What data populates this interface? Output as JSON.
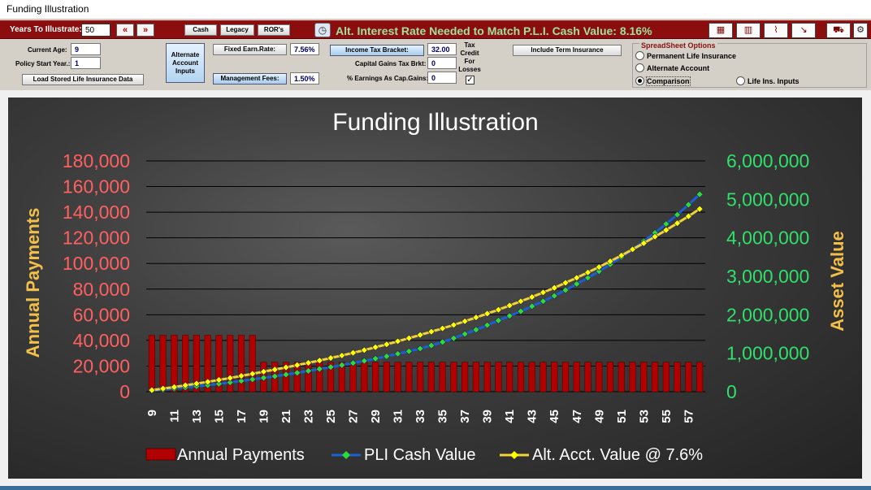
{
  "window": {
    "title": "Funding Illustration"
  },
  "toolbar": {
    "years_label": "Years To Illustrate:",
    "years_value": "50",
    "prev_label": "«",
    "next_label": "»",
    "cash_label": "Cash",
    "legacy_label": "Legacy",
    "rors_label": "ROR's",
    "alt_rate_text": "Alt. Interest Rate Needed to Match P.L.I. Cash Value: 8.16%",
    "icons": [
      "gauge-icon",
      "table-icon",
      "bar-chart-icon",
      "line-chart-icon",
      "trend-chart-icon",
      "car-icon",
      "settings-icon"
    ]
  },
  "inputs": {
    "current_age_label": "Current Age:",
    "current_age_value": "9",
    "policy_start_label": "Policy Start Year.:",
    "policy_start_value": "1",
    "load_button": "Load Stored Life Insurance Data",
    "alt_account_button": "Alternate Account Inputs",
    "fixed_earn_label": "Fixed Earn.Rate:",
    "fixed_earn_value": "7.56%",
    "mgmt_fees_label": "Management Fees:",
    "mgmt_fees_value": "1.50%",
    "income_tax_label": "Income Tax Bracket:",
    "income_tax_value": "32.00",
    "cap_gains_label": "Capital Gains Tax Brkt:",
    "cap_gains_value": "0",
    "pct_earnings_label": "% Earnings As Cap.Gains:",
    "pct_earnings_value": "0",
    "tax_credit_label": "Tax Credit For Losses",
    "tax_credit_checked": true,
    "term_insurance_button": "Include Term Insurance"
  },
  "spreadsheet_options": {
    "title": "SpreadSheet Options",
    "options": [
      "Permanent Life Insurance",
      "Alternate Account",
      "Comparison",
      "Life Ins. Inputs"
    ],
    "selected": "Comparison"
  },
  "chart_data": {
    "type": "bar+line",
    "title": "Funding Illustration",
    "ylabel_left": "Annual Payments",
    "ylabel_right": "Asset Value",
    "ylim_left": [
      0,
      180000
    ],
    "ylim_right": [
      0,
      6000000
    ],
    "left_ticks": [
      "180,000",
      "160,000",
      "140,000",
      "120,000",
      "100,000",
      "80,000",
      "60,000",
      "40,000",
      "20,000",
      "0"
    ],
    "right_ticks": [
      "6,000,000",
      "5,000,000",
      "4,000,000",
      "3,000,000",
      "2,000,000",
      "1,000,000",
      "0"
    ],
    "x_tick_labels": [
      "9",
      "11",
      "13",
      "15",
      "17",
      "19",
      "21",
      "23",
      "25",
      "27",
      "29",
      "31",
      "33",
      "35",
      "37",
      "39",
      "41",
      "43",
      "45",
      "47",
      "49",
      "51",
      "53",
      "55",
      "57"
    ],
    "x_start": 9,
    "x_end": 58,
    "series": [
      {
        "name": "Annual Payments",
        "axis": "left",
        "kind": "bar",
        "color": "#b00000",
        "values": [
          44000,
          44000,
          44000,
          44000,
          44000,
          44000,
          44000,
          44000,
          44000,
          44000,
          23000,
          23000,
          23000,
          23000,
          23000,
          23000,
          23000,
          23000,
          23000,
          23000,
          23000,
          23000,
          23000,
          23000,
          23000,
          23000,
          23000,
          23000,
          23000,
          23000,
          23000,
          23000,
          23000,
          23000,
          23000,
          23000,
          23000,
          23000,
          23000,
          23000,
          23000,
          23000,
          23000,
          23000,
          23000,
          23000,
          23000,
          23000,
          23000,
          23000
        ]
      },
      {
        "name": "PLI Cash Value",
        "axis": "right",
        "kind": "line",
        "color": "#1a5fd6",
        "marker_color": "#2fd93a",
        "values": [
          20000,
          50000,
          80000,
          110000,
          140000,
          170000,
          205000,
          240000,
          280000,
          320000,
          360000,
          400000,
          445000,
          490000,
          540000,
          590000,
          640000,
          690000,
          745000,
          800000,
          860000,
          920000,
          985000,
          1050000,
          1120000,
          1200000,
          1290000,
          1390000,
          1500000,
          1610000,
          1730000,
          1850000,
          1970000,
          2090000,
          2220000,
          2350000,
          2490000,
          2640000,
          2800000,
          2960000,
          3130000,
          3310000,
          3500000,
          3700000,
          3910000,
          4130000,
          4360000,
          4600000,
          4860000,
          5130000
        ]
      },
      {
        "name": "Alt. Acct. Value @ 7.6%",
        "axis": "right",
        "kind": "line",
        "color": "#f2d23a",
        "marker_color": "#ffff00",
        "values": [
          40000,
          80000,
          120000,
          165000,
          210000,
          255000,
          305000,
          355000,
          410000,
          465000,
          520000,
          575000,
          630000,
          690000,
          750000,
          810000,
          875000,
          940000,
          1010000,
          1080000,
          1155000,
          1230000,
          1310000,
          1390000,
          1475000,
          1560000,
          1645000,
          1735000,
          1830000,
          1930000,
          2030000,
          2130000,
          2240000,
          2350000,
          2460000,
          2580000,
          2700000,
          2830000,
          2960000,
          3100000,
          3240000,
          3390000,
          3540000,
          3700000,
          3860000,
          4030000,
          4200000,
          4380000,
          4560000,
          4750000
        ]
      }
    ],
    "legend_position": "bottom"
  }
}
